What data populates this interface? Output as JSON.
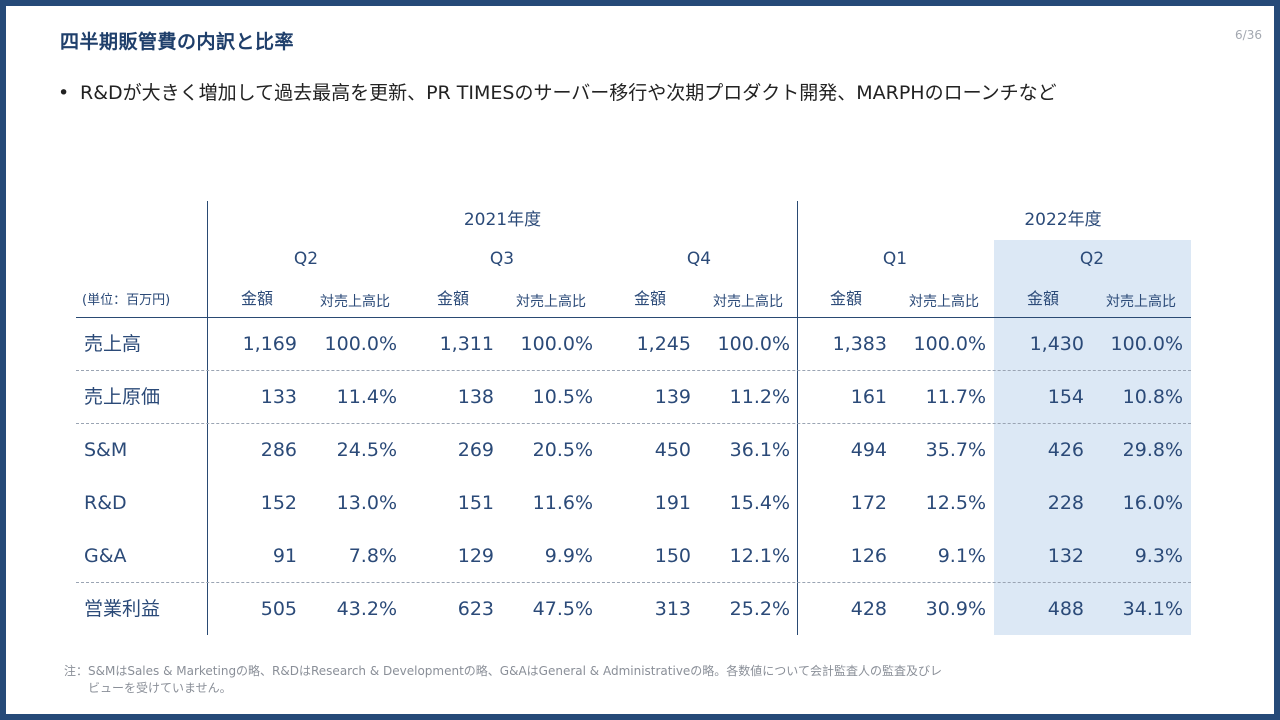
{
  "header": {
    "title": "四半期販管費の内訳と比率",
    "page": "6/36"
  },
  "bullet": {
    "text": "R&Dが大きく増加して過去最高を更新、PR TIMESのサーバー移行や次期プロダクト開発、MARPHのローンチなど"
  },
  "table": {
    "unit": "(単位：百万円)",
    "years": [
      "2021年度",
      "2022年度"
    ],
    "quarters": [
      "Q2",
      "Q3",
      "Q4",
      "Q1",
      "Q2"
    ],
    "sub_amount": "金額",
    "sub_ratio": "対売上高比",
    "rows": [
      {
        "label": "売上高",
        "cells": [
          "1,169",
          "100.0%",
          "1,311",
          "100.0%",
          "1,245",
          "100.0%",
          "1,383",
          "100.0%",
          "1,430",
          "100.0%"
        ]
      },
      {
        "label": "売上原価",
        "cells": [
          "133",
          "11.4%",
          "138",
          "10.5%",
          "139",
          "11.2%",
          "161",
          "11.7%",
          "154",
          "10.8%"
        ]
      },
      {
        "label": "S&M",
        "cells": [
          "286",
          "24.5%",
          "269",
          "20.5%",
          "450",
          "36.1%",
          "494",
          "35.7%",
          "426",
          "29.8%"
        ]
      },
      {
        "label": "R&D",
        "cells": [
          "152",
          "13.0%",
          "151",
          "11.6%",
          "191",
          "15.4%",
          "172",
          "12.5%",
          "228",
          "16.0%"
        ]
      },
      {
        "label": "G&A",
        "cells": [
          "91",
          "7.8%",
          "129",
          "9.9%",
          "150",
          "12.1%",
          "126",
          "9.1%",
          "132",
          "9.3%"
        ]
      },
      {
        "label": "営業利益",
        "cells": [
          "505",
          "43.2%",
          "623",
          "47.5%",
          "313",
          "25.2%",
          "428",
          "30.9%",
          "488",
          "34.1%"
        ]
      }
    ]
  },
  "note": {
    "line1": "注：S&MはSales & Marketingの略、R&DはResearch & Developmentの略、G&AはGeneral & Administrativeの略。各数値について会計監査人の監査及びレ",
    "line2": "ビューを受けていません。"
  }
}
